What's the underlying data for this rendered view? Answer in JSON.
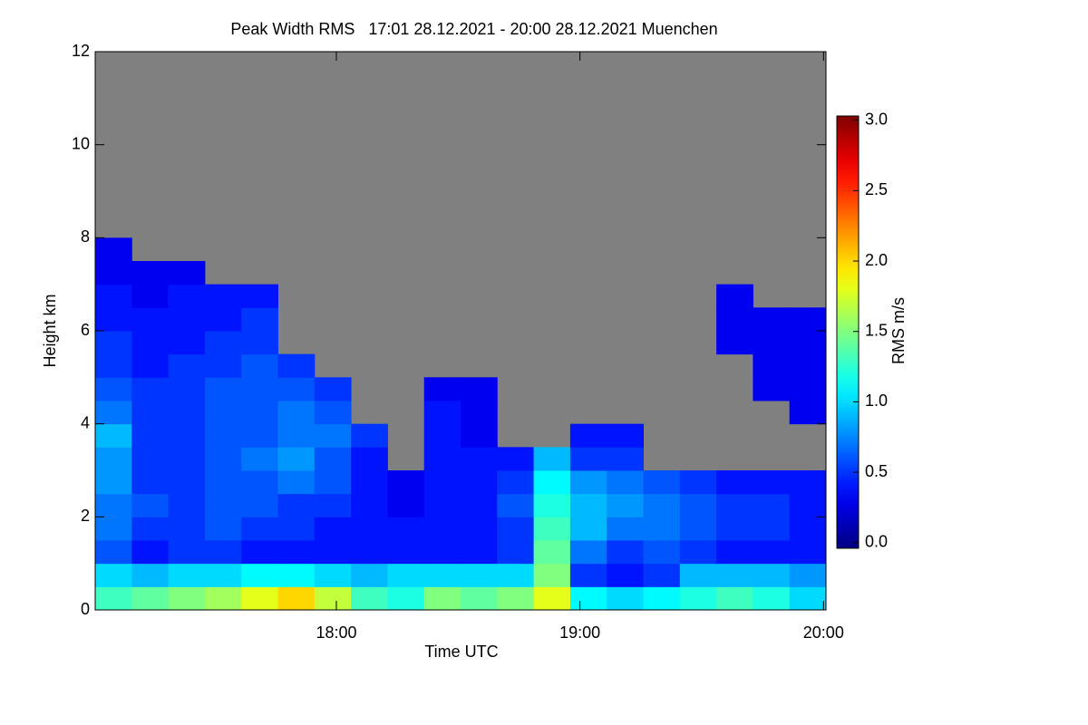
{
  "chart_data": {
    "type": "heatmap",
    "title": "Peak Width RMS   17:01 28.12.2021 - 20:00 28.12.2021 Muenchen",
    "x_label": "Time UTC",
    "y_label": "Height km",
    "colorbar_label": "RMS m/s",
    "xlim": [
      17.01,
      20.01
    ],
    "xticks": [
      {
        "value": 18,
        "label": "18:00"
      },
      {
        "value": 19,
        "label": "19:00"
      },
      {
        "value": 20,
        "label": "20:00"
      }
    ],
    "ylim": [
      0,
      12
    ],
    "yticks": [
      0,
      2,
      4,
      6,
      8,
      10,
      12
    ],
    "clim": [
      -0.04,
      3.03
    ],
    "cticks": [
      {
        "value": 0,
        "label": "0.0"
      },
      {
        "value": 0.5,
        "label": "0.5"
      },
      {
        "value": 1,
        "label": "1.0"
      },
      {
        "value": 1.5,
        "label": "1.5"
      },
      {
        "value": 2,
        "label": "2.0"
      },
      {
        "value": 2.5,
        "label": "2.5"
      },
      {
        "value": 3,
        "label": "3.0"
      }
    ],
    "colormap": "jet",
    "nodata_color": "#808080",
    "xbins": [
      17.01,
      17.16,
      17.31,
      17.46,
      17.61,
      17.76,
      17.91,
      18.06,
      18.21,
      18.36,
      18.51,
      18.66,
      18.81,
      18.96,
      19.11,
      19.26,
      19.41,
      19.56,
      19.71,
      19.86,
      20.01
    ],
    "ybins": [
      0,
      0.5,
      1,
      1.5,
      2,
      2.5,
      3,
      3.5,
      4,
      4.5,
      5,
      5.5,
      6,
      6.5,
      7,
      7.5,
      8
    ],
    "values": [
      [
        1.3,
        1.4,
        1.5,
        1.6,
        1.8,
        2.0,
        1.7,
        1.3,
        1.2,
        1.5,
        1.4,
        1.5,
        1.8,
        1.1,
        1.0,
        1.1,
        1.2,
        1.3,
        1.2,
        1.0
      ],
      [
        1.0,
        0.9,
        1.0,
        1.0,
        1.1,
        1.1,
        1.0,
        0.9,
        1.0,
        1.0,
        1.0,
        1.0,
        1.5,
        0.5,
        0.4,
        0.5,
        0.9,
        0.9,
        0.9,
        0.8
      ],
      [
        0.6,
        0.4,
        0.5,
        0.5,
        0.4,
        0.4,
        0.4,
        0.4,
        0.4,
        0.4,
        0.4,
        0.5,
        1.4,
        0.7,
        0.5,
        0.6,
        0.5,
        0.4,
        0.4,
        0.4
      ],
      [
        0.7,
        0.5,
        0.5,
        0.6,
        0.5,
        0.5,
        0.4,
        0.4,
        0.4,
        0.4,
        0.4,
        0.5,
        1.3,
        0.9,
        0.7,
        0.7,
        0.6,
        0.5,
        0.5,
        0.4
      ],
      [
        0.7,
        0.6,
        0.5,
        0.6,
        0.6,
        0.5,
        0.5,
        0.4,
        0.3,
        0.4,
        0.4,
        0.6,
        1.2,
        0.9,
        0.8,
        0.7,
        0.6,
        0.5,
        0.5,
        0.4
      ],
      [
        0.8,
        0.5,
        0.5,
        0.6,
        0.6,
        0.7,
        0.6,
        0.4,
        0.3,
        0.4,
        0.4,
        0.5,
        1.1,
        0.8,
        0.7,
        0.6,
        0.5,
        0.4,
        0.4,
        0.4
      ],
      [
        0.8,
        0.5,
        0.5,
        0.6,
        0.7,
        0.8,
        0.6,
        0.4,
        null,
        0.4,
        0.4,
        0.4,
        0.9,
        0.5,
        0.5,
        null,
        null,
        null,
        null,
        null
      ],
      [
        0.9,
        0.5,
        0.5,
        0.6,
        0.6,
        0.7,
        0.7,
        0.5,
        null,
        0.4,
        0.3,
        null,
        null,
        0.4,
        0.4,
        null,
        null,
        null,
        null,
        null
      ],
      [
        0.7,
        0.5,
        0.5,
        0.6,
        0.6,
        0.7,
        0.6,
        null,
        null,
        0.4,
        0.3,
        null,
        null,
        null,
        null,
        null,
        null,
        null,
        null,
        0.3
      ],
      [
        0.6,
        0.5,
        0.5,
        0.6,
        0.6,
        0.6,
        0.5,
        null,
        null,
        0.3,
        0.3,
        null,
        null,
        null,
        null,
        null,
        null,
        null,
        0.3,
        0.3
      ],
      [
        0.5,
        0.4,
        0.5,
        0.5,
        0.6,
        0.5,
        null,
        null,
        null,
        null,
        null,
        null,
        null,
        null,
        null,
        null,
        null,
        null,
        0.3,
        0.3
      ],
      [
        0.5,
        0.4,
        0.4,
        0.5,
        0.5,
        null,
        null,
        null,
        null,
        null,
        null,
        null,
        null,
        null,
        null,
        null,
        null,
        0.3,
        0.3,
        0.3
      ],
      [
        0.4,
        0.4,
        0.4,
        0.4,
        0.5,
        null,
        null,
        null,
        null,
        null,
        null,
        null,
        null,
        null,
        null,
        null,
        null,
        0.3,
        0.3,
        0.3
      ],
      [
        0.4,
        0.3,
        0.4,
        0.4,
        0.4,
        null,
        null,
        null,
        null,
        null,
        null,
        null,
        null,
        null,
        null,
        null,
        null,
        0.3,
        null,
        null
      ],
      [
        0.3,
        0.3,
        0.3,
        null,
        null,
        null,
        null,
        null,
        null,
        null,
        null,
        null,
        null,
        null,
        null,
        null,
        null,
        null,
        null,
        null
      ],
      [
        0.3,
        null,
        null,
        null,
        null,
        null,
        null,
        null,
        null,
        null,
        null,
        null,
        null,
        null,
        null,
        null,
        null,
        null,
        null,
        null
      ]
    ]
  }
}
